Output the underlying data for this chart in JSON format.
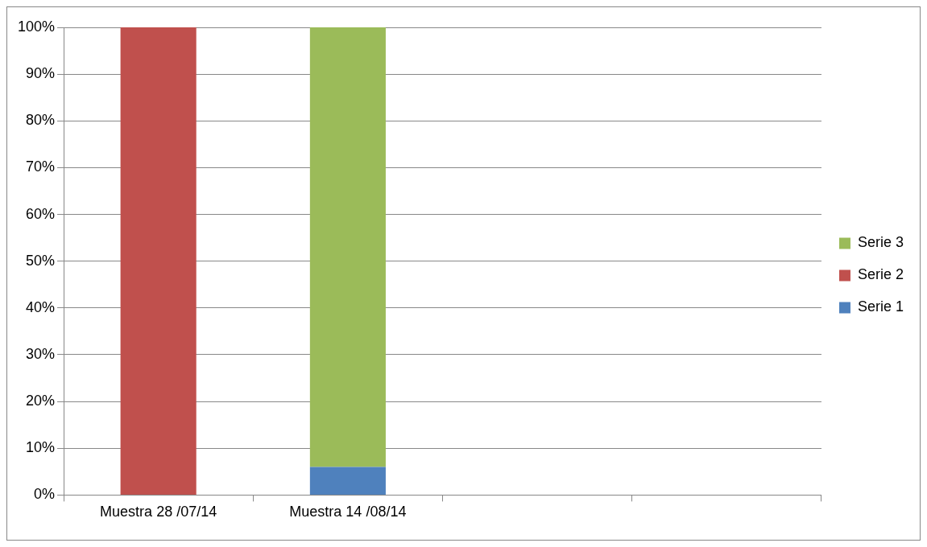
{
  "chart_data": {
    "type": "bar",
    "stacked": true,
    "categories": [
      "Muestra 28 /07/14",
      "Muestra 14 /08/14",
      null,
      null
    ],
    "series": [
      {
        "name": "Serie 1",
        "color": "#4f81bd",
        "values": [
          null,
          6,
          null,
          null
        ]
      },
      {
        "name": "Serie 2",
        "color": "#c0504d",
        "values": [
          100,
          null,
          null,
          null
        ]
      },
      {
        "name": "Serie 3",
        "color": "#9bbb59",
        "values": [
          null,
          94,
          null,
          null
        ]
      }
    ],
    "ylim": [
      0,
      100
    ],
    "yticks": [
      {
        "value": 0,
        "label": "0%"
      },
      {
        "value": 10,
        "label": "10%"
      },
      {
        "value": 20,
        "label": "20%"
      },
      {
        "value": 30,
        "label": "30%"
      },
      {
        "value": 40,
        "label": "40%"
      },
      {
        "value": 50,
        "label": "50%"
      },
      {
        "value": 60,
        "label": "60%"
      },
      {
        "value": 70,
        "label": "70%"
      },
      {
        "value": 80,
        "label": "80%"
      },
      {
        "value": 90,
        "label": "90%"
      },
      {
        "value": 100,
        "label": "100%"
      }
    ],
    "grid": "y",
    "legend": "right"
  }
}
